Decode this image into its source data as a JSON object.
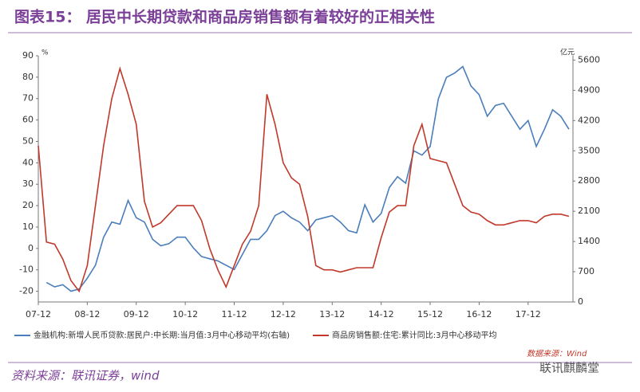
{
  "chart_data": {
    "type": "line",
    "title": "图表15：  居民中长期贷款和商品房销售额有着较好的正相关性",
    "y_label": "%",
    "y2_label": "亿元",
    "source": "资料来源：联讯证券，wind",
    "watermark": "数据来源：Wind",
    "brand": "联讯麒麟堂",
    "categories": [
      "07-12",
      null,
      null,
      null,
      null,
      null,
      "08-12",
      null,
      null,
      null,
      null,
      null,
      "09-12",
      null,
      null,
      null,
      null,
      null,
      "10-12",
      null,
      null,
      null,
      null,
      null,
      "11-12",
      null,
      null,
      null,
      null,
      null,
      "12-12",
      null,
      null,
      null,
      null,
      null,
      "13-12",
      null,
      null,
      null,
      null,
      null,
      "14-12",
      null,
      null,
      null,
      null,
      null,
      "15-12",
      null,
      null,
      null,
      null,
      null,
      "16-12",
      null,
      null,
      null,
      null,
      null,
      "17-12",
      null,
      null,
      null,
      null,
      null
    ],
    "series": [
      {
        "name": "金融机构:新增人民币贷款:居民户:中长期:当月值:3月中心移动平均(右轴)",
        "color": "#4a7ebb",
        "axis": "y2",
        "values": [
          null,
          450,
          350,
          400,
          250,
          300,
          550,
          850,
          1500,
          1850,
          1800,
          2350,
          1950,
          1850,
          1450,
          1300,
          1350,
          1500,
          1500,
          1250,
          1050,
          1000,
          950,
          850,
          750,
          1100,
          1450,
          1450,
          1650,
          2000,
          2100,
          1950,
          1850,
          1650,
          1900,
          1950,
          2000,
          1850,
          1650,
          1600,
          2250,
          1850,
          2050,
          2650,
          2900,
          2750,
          3500,
          3400,
          3600,
          4700,
          5200,
          5300,
          5450,
          5000,
          4800,
          4300,
          4550,
          4600,
          4300,
          4000,
          4200,
          3600,
          4000,
          4450,
          4300,
          4000
        ]
      },
      {
        "name": "商品房销售额:住宅:累计同比:3月中心移动平均",
        "color": "#c0392b",
        "axis": "y",
        "values": [
          48,
          3,
          2,
          -5,
          -15,
          -20,
          -8,
          20,
          48,
          70,
          84,
          72,
          58,
          22,
          10,
          12,
          16,
          20,
          20,
          20,
          13,
          0,
          -10,
          -18,
          -8,
          2,
          8,
          20,
          72,
          58,
          40,
          33,
          30,
          15,
          -8,
          -10,
          -10,
          -11,
          -10,
          -9,
          -9,
          -9,
          5,
          17,
          20,
          20,
          48,
          58,
          42,
          41,
          40,
          30,
          20,
          17,
          16,
          13,
          11,
          11,
          12,
          13,
          13,
          12,
          15,
          16,
          16,
          15
        ]
      }
    ],
    "ylim": [
      -25,
      90
    ],
    "yticks": [
      -20,
      -10,
      0,
      10,
      20,
      30,
      40,
      50,
      60,
      70,
      80,
      90
    ],
    "y2lim": [
      0,
      5700
    ],
    "y2ticks": [
      0,
      700,
      1400,
      2100,
      2800,
      3500,
      4200,
      4900,
      5600
    ],
    "grid": false
  }
}
